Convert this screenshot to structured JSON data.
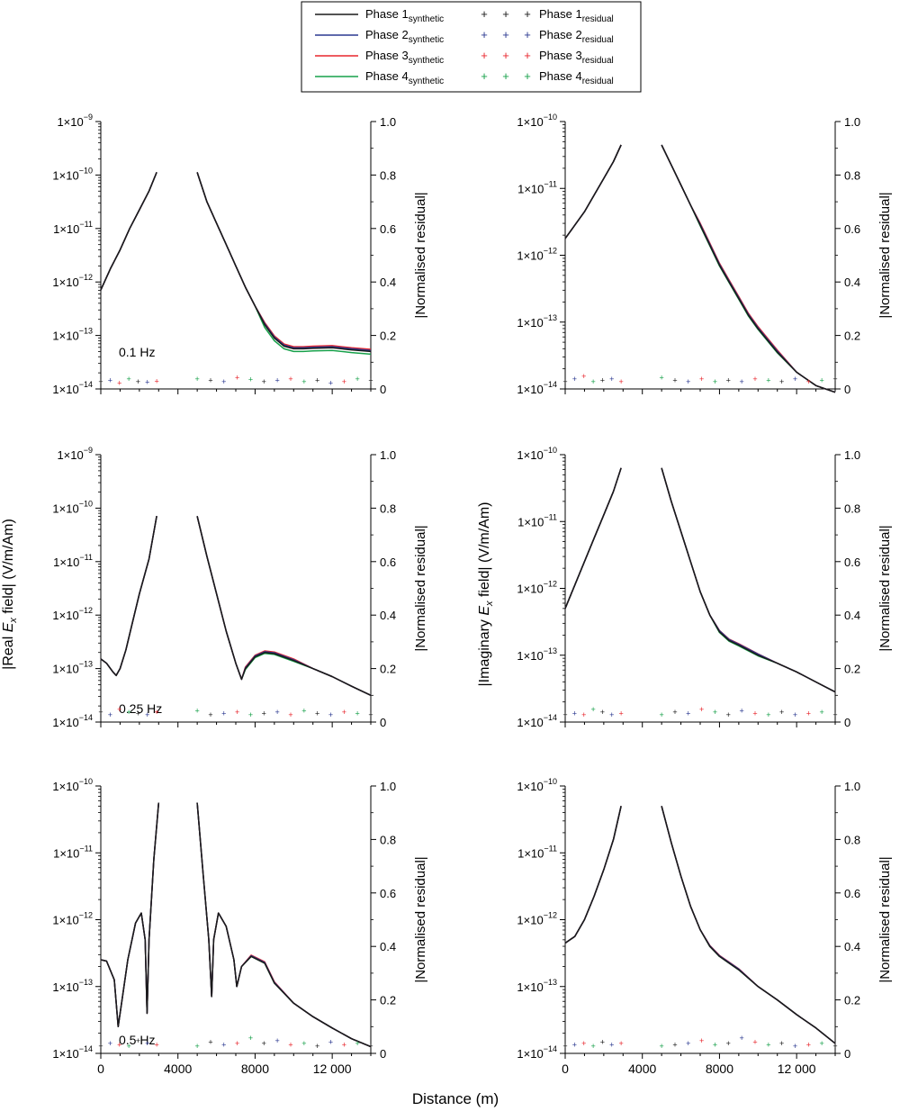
{
  "legend": {
    "synthetic_entries": [
      {
        "base": "Phase 1",
        "sub": "synthetic",
        "color": "#1a1a1a"
      },
      {
        "base": "Phase 2",
        "sub": "synthetic",
        "color": "#2b3990"
      },
      {
        "base": "Phase 3",
        "sub": "synthetic",
        "color": "#e8262d"
      },
      {
        "base": "Phase 4",
        "sub": "synthetic",
        "color": "#17a04a"
      }
    ],
    "residual_entries": [
      {
        "base": "Phase 1",
        "sub": "residual",
        "color": "#1a1a1a"
      },
      {
        "base": "Phase 2",
        "sub": "residual",
        "color": "#2b3990"
      },
      {
        "base": "Phase 3",
        "sub": "residual",
        "color": "#e8262d"
      },
      {
        "base": "Phase 4",
        "sub": "residual",
        "color": "#17a04a"
      }
    ],
    "marker_glyph": "+"
  },
  "axis_text": {
    "left_ylabel_real": {
      "pre": "|Real ",
      "var": "E",
      "sub": "x",
      "post": " field| (V/m/Am)"
    },
    "left_ylabel_imag": {
      "pre": "|Imaginary ",
      "var": "E",
      "sub": "x",
      "post": " field| (V/m/Am)"
    },
    "right_ylabel": "|Normalised residual|",
    "xlabel": "Distance (m)",
    "x_ticks": [
      "0",
      "4000",
      "8000",
      "12 000"
    ],
    "right_ticks": [
      "0",
      "0.2",
      "0.4",
      "0.6",
      "0.8",
      "1.0"
    ],
    "log_tick_mantissa": "1×10"
  },
  "chart_data": [
    {
      "type": "line",
      "panel": "real-0.1Hz",
      "annotation": "0.1 Hz",
      "xlim": [
        0,
        14000
      ],
      "ylim_log": [
        -14,
        -9
      ],
      "y_scale": "log",
      "ylim_right": [
        0,
        1
      ],
      "y_ticks_exp": [
        "−14",
        "−13",
        "−12",
        "−11",
        "−10",
        "−9"
      ],
      "gap": [
        3000,
        5000
      ],
      "series_main": {
        "x": [
          0,
          500,
          1000,
          1500,
          2000,
          2500,
          2900,
          5000,
          5500,
          6000,
          6500,
          7000,
          7500,
          8000,
          8500,
          9000,
          9500,
          10000,
          10500,
          11000,
          12000,
          13000,
          14000
        ],
        "y": [
          -12.15,
          -11.75,
          -11.4,
          -11.0,
          -10.65,
          -10.3,
          -9.95,
          -9.95,
          -10.5,
          -10.9,
          -11.3,
          -11.7,
          -12.1,
          -12.45,
          -12.8,
          -13.05,
          -13.2,
          -13.25,
          -13.25,
          -13.24,
          -13.23,
          -13.27,
          -13.3
        ]
      },
      "series_offsets": [
        0.0,
        0.02,
        0.04,
        -0.05
      ],
      "offset_window": [
        8500,
        14000
      ],
      "residual_scatter": [
        0.03,
        0.035,
        0.025,
        0.04,
        0.03,
        0.028,
        0.032,
        0.04,
        0.035,
        0.03,
        0.045,
        0.038,
        0.03,
        0.035,
        0.04,
        0.03,
        0.035,
        0.025,
        0.03,
        0.04,
        0.035
      ]
    },
    {
      "type": "line",
      "panel": "imag-0.1Hz",
      "annotation": "",
      "xlim": [
        0,
        14000
      ],
      "ylim_log": [
        -14,
        -10
      ],
      "y_scale": "log",
      "ylim_right": [
        0,
        1
      ],
      "y_ticks_exp": [
        "−14",
        "−13",
        "−12",
        "−11",
        "−10"
      ],
      "gap": [
        3000,
        5000
      ],
      "series_main": {
        "x": [
          0,
          500,
          1000,
          1500,
          2000,
          2500,
          2900,
          5000,
          5500,
          6000,
          6500,
          7000,
          7500,
          8000,
          8500,
          9000,
          9500,
          10000,
          11000,
          12000,
          13000,
          14000
        ],
        "y": [
          -11.75,
          -11.55,
          -11.35,
          -11.1,
          -10.85,
          -10.6,
          -10.35,
          -10.35,
          -10.65,
          -10.95,
          -11.25,
          -11.55,
          -11.85,
          -12.15,
          -12.4,
          -12.65,
          -12.9,
          -13.1,
          -13.45,
          -13.75,
          -13.95,
          -14.05
        ]
      },
      "series_offsets": [
        0.0,
        0.015,
        0.03,
        -0.01
      ],
      "offset_window": [
        7000,
        11000
      ],
      "residual_scatter": [
        0.03,
        0.04,
        0.05,
        0.03,
        0.035,
        0.04,
        0.03,
        0.045,
        0.035,
        0.03,
        0.04,
        0.03,
        0.035,
        0.03,
        0.04,
        0.035,
        0.03,
        0.04,
        0.03,
        0.035,
        0.04
      ]
    },
    {
      "type": "line",
      "panel": "real-0.25Hz",
      "annotation": "0.25 Hz",
      "xlim": [
        0,
        14000
      ],
      "ylim_log": [
        -14,
        -9
      ],
      "y_scale": "log",
      "ylim_right": [
        0,
        1
      ],
      "y_ticks_exp": [
        "−14",
        "−13",
        "−12",
        "−11",
        "−10",
        "−9"
      ],
      "gap": [
        3000,
        5000
      ],
      "series_main": {
        "x": [
          0,
          300,
          600,
          800,
          1000,
          1300,
          1600,
          2000,
          2500,
          2900,
          5000,
          5500,
          6000,
          6500,
          7000,
          7300,
          7500,
          8000,
          8500,
          9000,
          10000,
          11000,
          12000,
          13000,
          14000
        ],
        "y": [
          -12.82,
          -12.9,
          -13.05,
          -13.13,
          -13.0,
          -12.65,
          -12.2,
          -11.6,
          -10.95,
          -10.15,
          -10.15,
          -10.9,
          -11.6,
          -12.3,
          -12.9,
          -13.2,
          -13.0,
          -12.78,
          -12.7,
          -12.72,
          -12.85,
          -13.0,
          -13.15,
          -13.33,
          -13.5
        ]
      },
      "series_offsets": [
        0.0,
        0.015,
        0.03,
        -0.015
      ],
      "offset_window": [
        7500,
        10000
      ],
      "residual_scatter": [
        0.04,
        0.03,
        0.05,
        0.04,
        0.035,
        0.03,
        0.04,
        0.045,
        0.03,
        0.035,
        0.04,
        0.03,
        0.035,
        0.04,
        0.03,
        0.045,
        0.035,
        0.03,
        0.04,
        0.035,
        0.03
      ]
    },
    {
      "type": "line",
      "panel": "imag-0.25Hz",
      "annotation": "",
      "xlim": [
        0,
        14000
      ],
      "ylim_log": [
        -14,
        -10
      ],
      "y_scale": "log",
      "ylim_right": [
        0,
        1
      ],
      "y_ticks_exp": [
        "−14",
        "−13",
        "−12",
        "−11",
        "−10"
      ],
      "gap": [
        3000,
        5000
      ],
      "series_main": {
        "x": [
          0,
          500,
          1000,
          1500,
          2000,
          2500,
          2900,
          5000,
          5500,
          6000,
          6500,
          7000,
          7500,
          8000,
          8500,
          9000,
          10000,
          11000,
          12000,
          13000,
          14000
        ],
        "y": [
          -12.3,
          -11.95,
          -11.6,
          -11.25,
          -10.9,
          -10.55,
          -10.2,
          -10.2,
          -10.7,
          -11.15,
          -11.6,
          -12.05,
          -12.4,
          -12.65,
          -12.78,
          -12.85,
          -13.0,
          -13.12,
          -13.25,
          -13.4,
          -13.55
        ]
      },
      "series_offsets": [
        0.0,
        0.015,
        0.02,
        -0.01
      ],
      "offset_window": [
        8000,
        10000
      ],
      "residual_scatter": [
        0.03,
        0.035,
        0.03,
        0.05,
        0.04,
        0.03,
        0.035,
        0.03,
        0.04,
        0.035,
        0.05,
        0.04,
        0.03,
        0.045,
        0.035,
        0.03,
        0.04,
        0.03,
        0.035,
        0.04,
        0.03
      ]
    },
    {
      "type": "line",
      "panel": "real-0.5Hz",
      "annotation": "0.5 Hz",
      "xlim": [
        0,
        14000
      ],
      "ylim_log": [
        -14,
        -10
      ],
      "y_scale": "log",
      "ylim_right": [
        0,
        1
      ],
      "y_ticks_exp": [
        "−14",
        "−13",
        "−12",
        "−11",
        "−10"
      ],
      "gap": [
        3000,
        5000
      ],
      "series_main": {
        "x": [
          0,
          300,
          700,
          900,
          1100,
          1400,
          1800,
          2100,
          2300,
          2400,
          2500,
          2750,
          3000,
          5000,
          5300,
          5600,
          5750,
          5850,
          6100,
          6500,
          6900,
          7050,
          7300,
          7800,
          8500,
          9000,
          10000,
          11000,
          12000,
          13000,
          14000
        ],
        "y": [
          -12.6,
          -12.62,
          -12.9,
          -13.6,
          -13.2,
          -12.6,
          -12.05,
          -11.9,
          -12.3,
          -13.4,
          -12.3,
          -11.1,
          -10.25,
          -10.25,
          -11.3,
          -12.3,
          -13.15,
          -12.3,
          -11.9,
          -12.1,
          -12.6,
          -13.0,
          -12.7,
          -12.55,
          -12.65,
          -12.95,
          -13.25,
          -13.45,
          -13.62,
          -13.78,
          -13.9
        ]
      },
      "series_offsets": [
        0.0,
        0.01,
        0.02,
        0.0
      ],
      "offset_window": [
        7800,
        9500
      ],
      "residual_scatter": [
        0.03,
        0.04,
        0.035,
        0.03,
        0.05,
        0.04,
        0.035,
        0.03,
        0.045,
        0.035,
        0.04,
        0.06,
        0.04,
        0.05,
        0.035,
        0.04,
        0.03,
        0.045,
        0.035,
        0.04,
        0.03
      ]
    },
    {
      "type": "line",
      "panel": "imag-0.5Hz",
      "annotation": "",
      "xlim": [
        0,
        14000
      ],
      "ylim_log": [
        -14,
        -10
      ],
      "y_scale": "log",
      "ylim_right": [
        0,
        1
      ],
      "y_ticks_exp": [
        "−14",
        "−13",
        "−12",
        "−11",
        "−10"
      ],
      "gap": [
        3000,
        5000
      ],
      "series_main": {
        "x": [
          0,
          500,
          1000,
          1500,
          2000,
          2500,
          2900,
          5000,
          5500,
          6000,
          6500,
          7000,
          7500,
          8000,
          8500,
          9000,
          10000,
          11000,
          12000,
          13000,
          14000
        ],
        "y": [
          -12.35,
          -12.25,
          -12.0,
          -11.65,
          -11.25,
          -10.8,
          -10.3,
          -10.3,
          -10.85,
          -11.35,
          -11.8,
          -12.15,
          -12.4,
          -12.55,
          -12.65,
          -12.75,
          -13.0,
          -13.2,
          -13.42,
          -13.62,
          -13.85
        ]
      },
      "series_offsets": [
        0.0,
        0.01,
        0.015,
        0.0
      ],
      "offset_window": [
        7500,
        9500
      ],
      "residual_scatter": [
        0.03,
        0.035,
        0.04,
        0.03,
        0.045,
        0.035,
        0.04,
        0.03,
        0.035,
        0.04,
        0.05,
        0.035,
        0.04,
        0.06,
        0.045,
        0.035,
        0.04,
        0.03,
        0.035,
        0.04,
        0.03
      ]
    }
  ]
}
